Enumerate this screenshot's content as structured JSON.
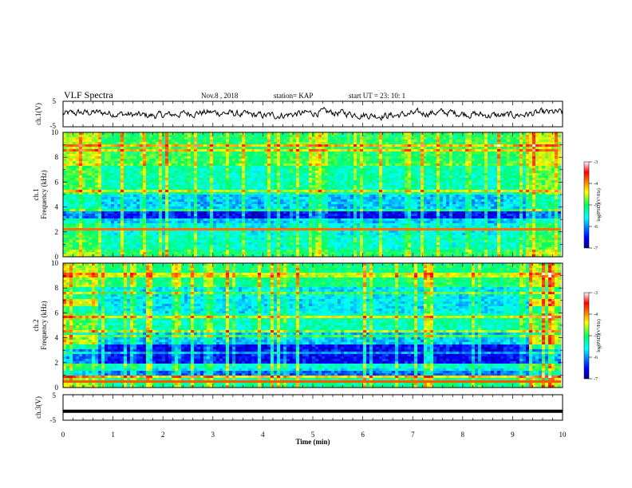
{
  "header": {
    "title": "VLF Spectra",
    "date": "Nov.8 , 2018",
    "station": "station= KAP",
    "start": "start UT = 23: 10: 1"
  },
  "colors": {
    "spectrogram_low": "#0000a0",
    "spectrogram_mid": "#00e0a0",
    "spectrogram_high": "#ff0000",
    "trace": "#000000"
  },
  "chart_data": [
    {
      "type": "line",
      "name": "ch1-waveform",
      "ylabel": "ch.1(V)",
      "ylim": [
        -5,
        5
      ],
      "yticks": [
        "5",
        "-5"
      ],
      "xlim": [
        0,
        10
      ],
      "note": "noisy waveform fluctuating mostly between about -2 and 2 V"
    },
    {
      "type": "heatmap",
      "name": "ch1-spectrogram",
      "ylabel": "ch.1",
      "ylabel2": "Frequency (kHz)",
      "ylim": [
        0,
        10
      ],
      "yticks": [
        "0",
        "2",
        "4",
        "6",
        "8",
        "10"
      ],
      "xlim": [
        0,
        10
      ],
      "colorbar": {
        "label": "log(PSD)(V²/Hz)",
        "range": [
          -7,
          -3
        ],
        "ticks": [
          "-3",
          "-4",
          "-5",
          "-6",
          "-7"
        ]
      }
    },
    {
      "type": "heatmap",
      "name": "ch2-spectrogram",
      "ylabel": "ch.2",
      "ylabel2": "Frequency (kHz)",
      "ylim": [
        0,
        10
      ],
      "yticks": [
        "0",
        "2",
        "4",
        "6",
        "8",
        "10"
      ],
      "xlim": [
        0,
        10
      ],
      "colorbar": {
        "label": "log(PSD)(V²/Hz)",
        "range": [
          -7,
          -3
        ],
        "ticks": [
          "-3",
          "-4",
          "-5",
          "-6",
          "-7"
        ]
      }
    },
    {
      "type": "line",
      "name": "ch3-waveform",
      "ylabel": "ch.3(V)",
      "ylim": [
        -5,
        5
      ],
      "yticks": [
        "5",
        "-5"
      ],
      "xlim": [
        0,
        10
      ],
      "x": [
        0,
        10
      ],
      "y": [
        -1.5,
        -1.5
      ]
    }
  ],
  "xaxis": {
    "label": "Time (min)",
    "ticks": [
      "0",
      "1",
      "2",
      "3",
      "4",
      "5",
      "6",
      "7",
      "8",
      "9",
      "10"
    ]
  }
}
